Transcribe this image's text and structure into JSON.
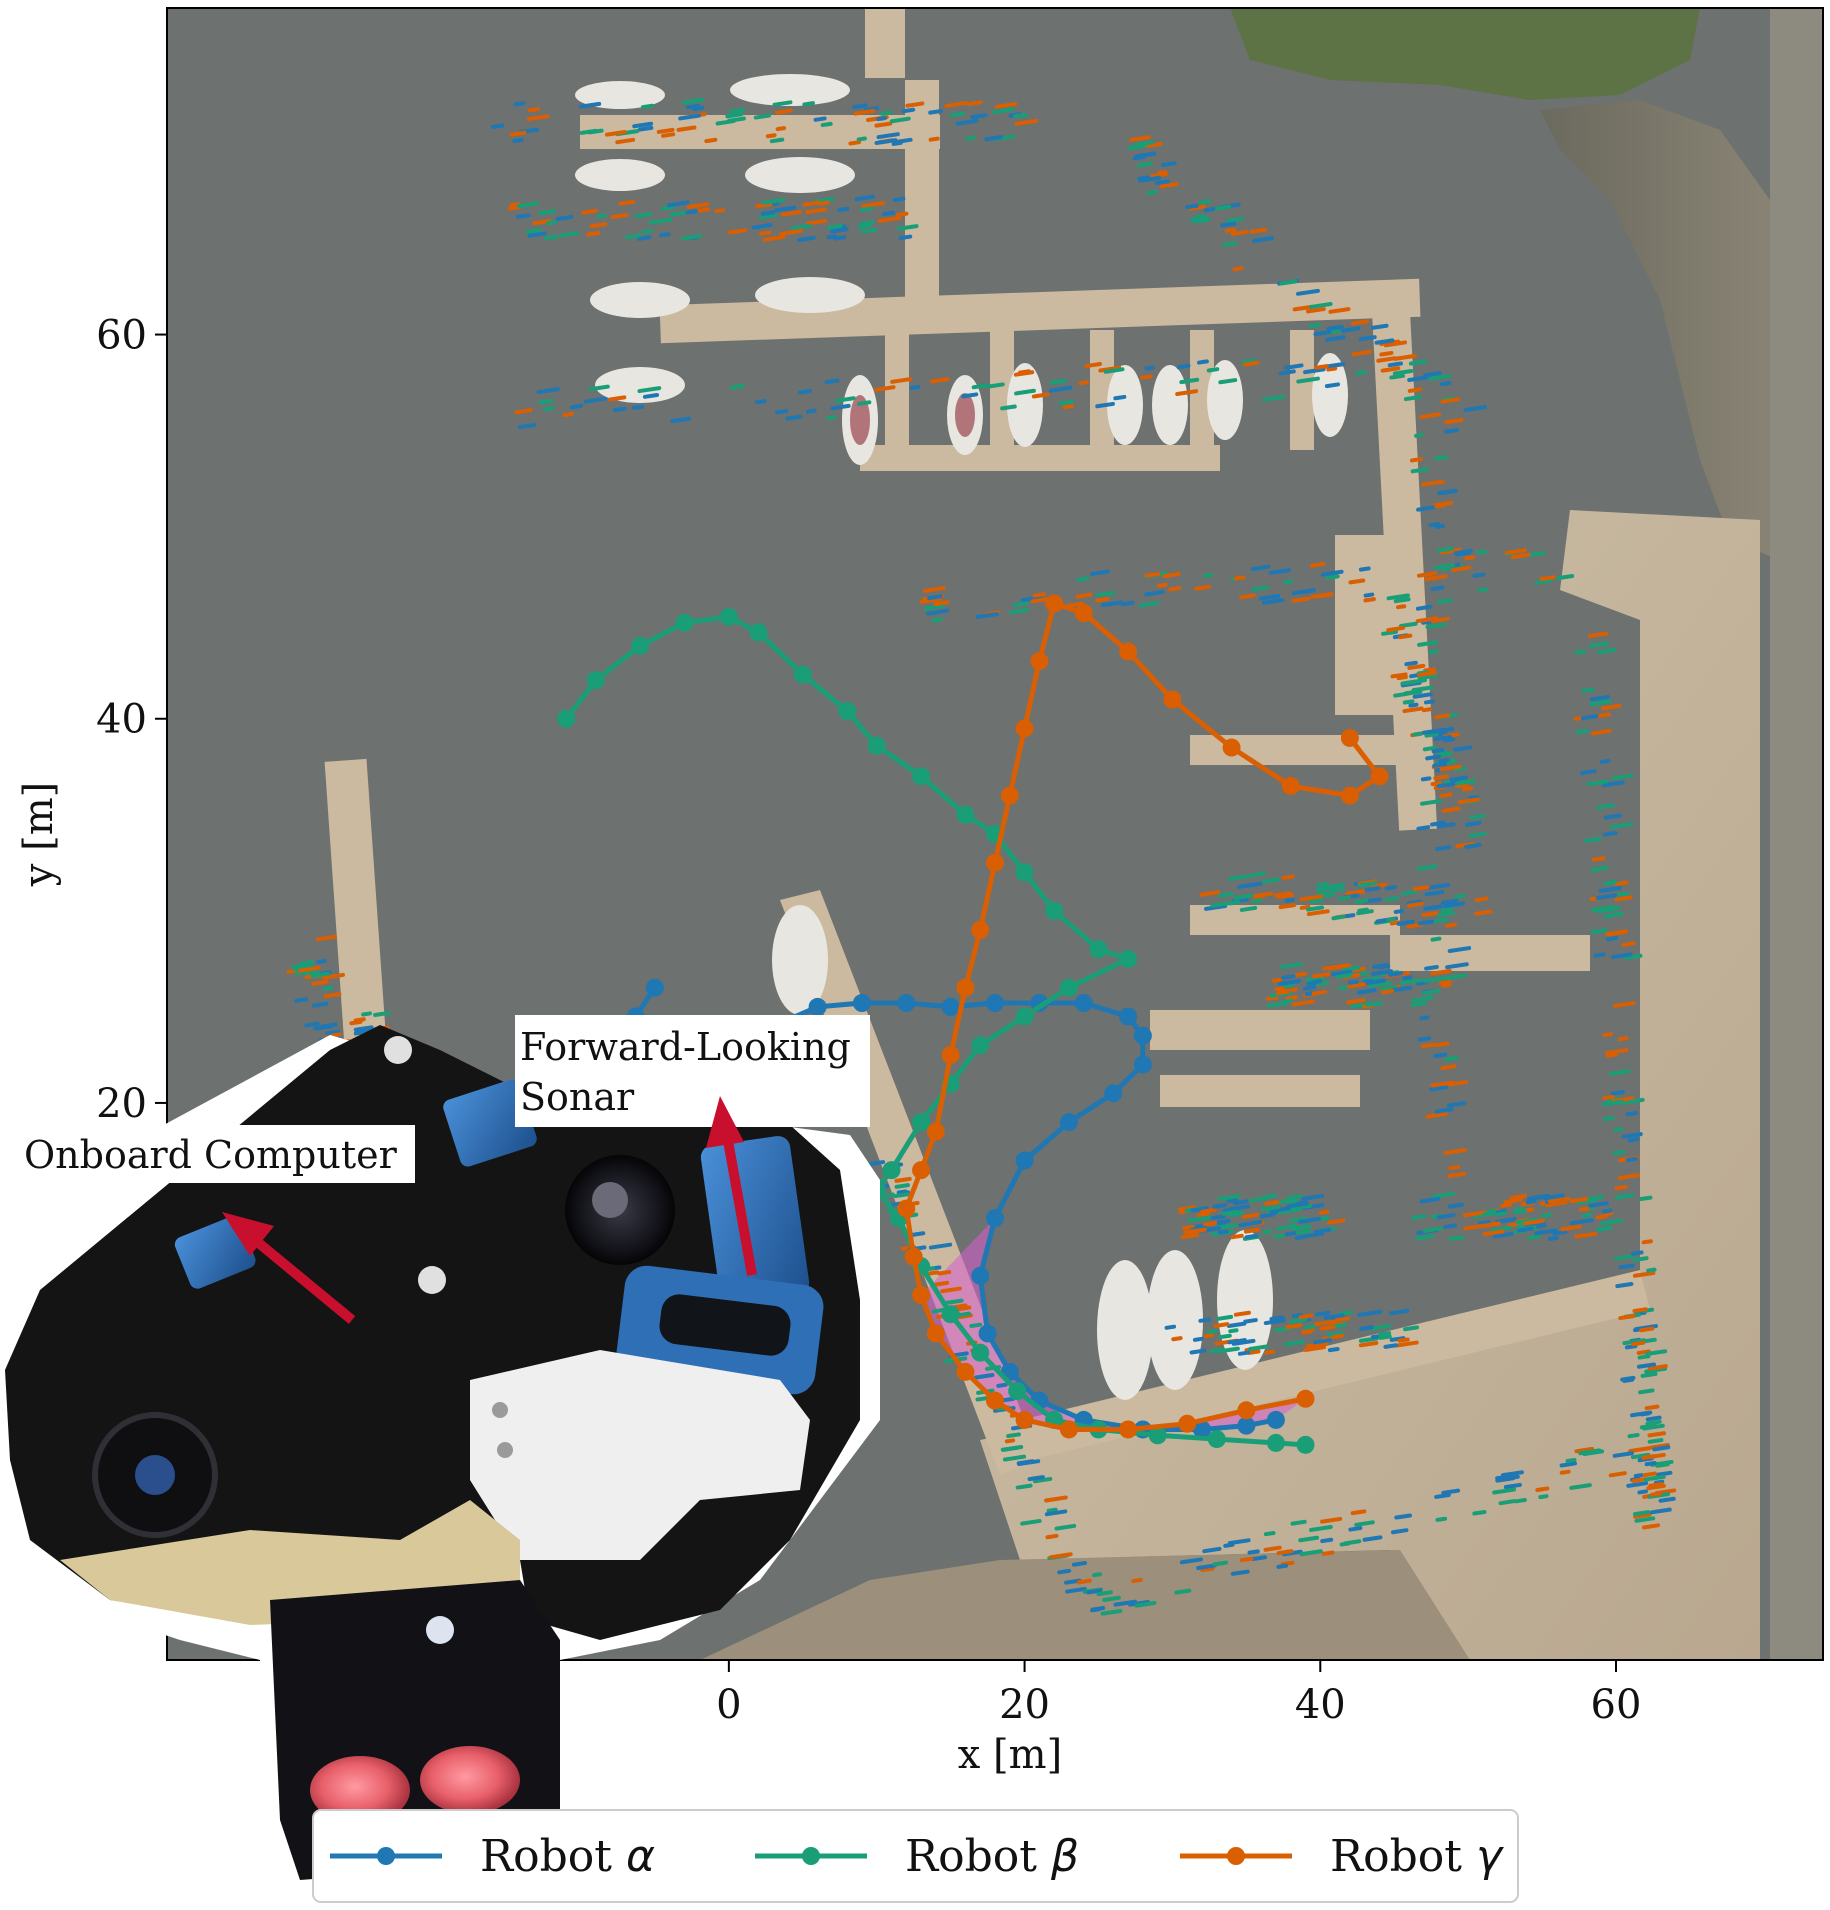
{
  "chart_data": {
    "type": "line",
    "title": "",
    "xlabel": "x [m]",
    "ylabel": "y [m]",
    "xlim": [
      -38,
      74
    ],
    "ylim": [
      -9,
      77
    ],
    "xticks": [
      0,
      20,
      40,
      60
    ],
    "yticks": [
      20,
      40,
      60
    ],
    "grid": false,
    "legend": {
      "position": "bottom",
      "ncol": 3
    },
    "background": "aerial photo of a marina with docks, moored boats and a breakwater",
    "series": [
      {
        "name": "Robot α",
        "name_prefix": "Robot ",
        "name_greek": "α",
        "color": "#1f77b4",
        "x": [
          -5,
          -6.3,
          -8,
          -10,
          -12,
          -11,
          -9,
          -6,
          -3,
          0,
          3,
          6,
          9,
          12,
          15,
          18,
          21,
          24,
          27,
          28,
          28,
          26,
          23,
          20,
          18,
          17,
          17.5,
          19,
          21,
          24,
          28,
          32,
          35,
          37
        ],
        "y": [
          26,
          24.5,
          22.5,
          20,
          17.5,
          16,
          17,
          19.5,
          21.5,
          23,
          24,
          25,
          25.2,
          25.2,
          25,
          25.2,
          25.2,
          25.2,
          24.5,
          23.5,
          22,
          20.5,
          19,
          17,
          14,
          11,
          8,
          6,
          4.5,
          3.5,
          3,
          3,
          3.2,
          3.5
        ]
      },
      {
        "name": "Robot β",
        "name_prefix": "Robot ",
        "name_greek": "β",
        "color": "#1a9e77",
        "x": [
          -11,
          -9,
          -6,
          -3,
          0,
          2,
          5,
          8,
          10,
          13,
          16,
          18,
          20,
          22,
          25,
          27,
          23,
          20,
          17,
          15,
          13,
          11,
          10,
          11.5,
          13,
          15,
          17,
          19.5,
          22,
          25,
          29,
          33,
          37,
          39
        ],
        "y": [
          40,
          42,
          43.8,
          45,
          45.3,
          44.5,
          42.3,
          40.4,
          38.6,
          37,
          35,
          34,
          32,
          30,
          28,
          27.5,
          26,
          24.5,
          23,
          21,
          19,
          16.5,
          15.5,
          14,
          11.5,
          9,
          7,
          5,
          3.5,
          3,
          2.7,
          2.5,
          2.3,
          2.2
        ]
      },
      {
        "name": "Robot γ",
        "name_prefix": "Robot ",
        "name_greek": "γ",
        "color": "#d95f02",
        "x": [
          42,
          44,
          42,
          38,
          34,
          30,
          27,
          24,
          22,
          21,
          20,
          19,
          18,
          17,
          16,
          15,
          14,
          13,
          12,
          12.5,
          13,
          14,
          16,
          18,
          20,
          23,
          27,
          31,
          35,
          39
        ],
        "y": [
          39,
          37,
          36,
          36.5,
          38.5,
          41,
          43.5,
          45.5,
          46,
          43,
          39.5,
          36,
          32.5,
          29,
          26,
          22.5,
          18.5,
          16.5,
          14.5,
          12,
          10,
          8,
          6,
          4.5,
          3.5,
          3,
          3,
          3.3,
          4,
          4.6
        ]
      }
    ]
  },
  "callouts": {
    "onboard_computer": "Onboard Computer",
    "sonar_line1": "Forward-Looking",
    "sonar_line2": "Sonar"
  },
  "colors": {
    "water": "#6d716f",
    "dock": "#cbb9a0",
    "pier_stone": "#c2b29a",
    "boat_hull": "#e8e6e1",
    "trees": "#5d7345",
    "robot_frame": "#141414",
    "robot_blue": "#2e6fb5",
    "robot_buoyancy": "#d8c89a",
    "robot_bracket": "#efefef",
    "robot_light": "#e8606a",
    "arrow": "#c8102e",
    "overlap_region": "#d85fd0"
  }
}
